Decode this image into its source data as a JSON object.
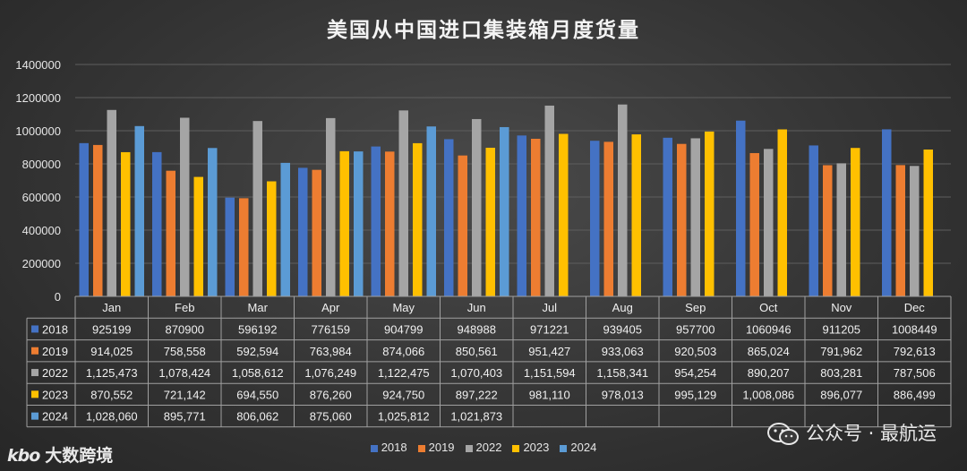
{
  "chart_data": {
    "type": "bar",
    "title": "美国从中国进口集装箱月度货量",
    "categories": [
      "Jan",
      "Feb",
      "Mar",
      "Apr",
      "May",
      "Jun",
      "Jul",
      "Aug",
      "Sep",
      "Oct",
      "Nov",
      "Dec"
    ],
    "ylim": [
      0,
      1400000
    ],
    "yticks": [
      "0",
      "200000",
      "400000",
      "600000",
      "800000",
      "1000000",
      "1200000",
      "1400000"
    ],
    "ytick_values": [
      0,
      200000,
      400000,
      600000,
      800000,
      1000000,
      1200000,
      1400000
    ],
    "legend_position": "bottom",
    "series": [
      {
        "name": "2018",
        "color": "#4472c4",
        "values": [
          925199,
          870900,
          596192,
          776159,
          904799,
          948988,
          971221,
          939405,
          957700,
          1060946,
          911205,
          1008449
        ],
        "labels": [
          "925199",
          "870900",
          "596192",
          "776159",
          "904799",
          "948988",
          "971221",
          "939405",
          "957700",
          "1060946",
          "911205",
          "1008449"
        ]
      },
      {
        "name": "2019",
        "color": "#ed7d31",
        "values": [
          914025,
          758558,
          592594,
          763984,
          874066,
          850561,
          951427,
          933063,
          920503,
          865024,
          791962,
          792613
        ],
        "labels": [
          "914,025",
          "758,558",
          "592,594",
          "763,984",
          "874,066",
          "850,561",
          "951,427",
          "933,063",
          "920,503",
          "865,024",
          "791,962",
          "792,613"
        ]
      },
      {
        "name": "2022",
        "color": "#a5a5a5",
        "values": [
          1125473,
          1078424,
          1058612,
          1076249,
          1122475,
          1070403,
          1151594,
          1158341,
          954254,
          890207,
          803281,
          787506
        ],
        "labels": [
          "1,125,473",
          "1,078,424",
          "1,058,612",
          "1,076,249",
          "1,122,475",
          "1,070,403",
          "1,151,594",
          "1,158,341",
          "954,254",
          "890,207",
          "803,281",
          "787,506"
        ]
      },
      {
        "name": "2023",
        "color": "#ffc000",
        "values": [
          870552,
          721142,
          694550,
          876260,
          924750,
          897222,
          981110,
          978013,
          995129,
          1008086,
          896077,
          886499
        ],
        "labels": [
          "870,552",
          "721,142",
          "694,550",
          "876,260",
          "924,750",
          "897,222",
          "981,110",
          "978,013",
          "995,129",
          "1,008,086",
          "896,077",
          "886,499"
        ]
      },
      {
        "name": "2024",
        "color": "#5b9bd5",
        "values": [
          1028060,
          895771,
          806062,
          875060,
          1025812,
          1021873,
          null,
          null,
          null,
          null,
          null,
          null
        ],
        "labels": [
          "1,028,060",
          "895,771",
          "806,062",
          "875,060",
          "1,025,812",
          "1,021,873",
          "",
          "",
          "",
          "",
          "",
          ""
        ]
      }
    ]
  },
  "watermark": {
    "text": "公众号 · 最航运"
  },
  "logo": {
    "mark": "kbo",
    "text": "大数跨境"
  }
}
